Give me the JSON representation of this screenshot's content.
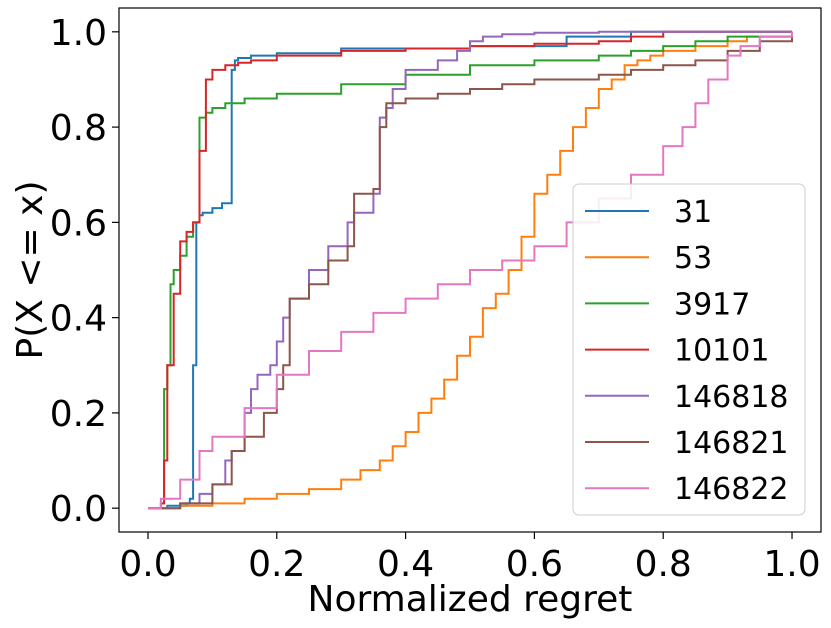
{
  "chart_data": {
    "type": "line",
    "step": true,
    "title": "",
    "xlabel": "Normalized regret",
    "ylabel": "P(X <= x)",
    "xlim": [
      -0.045,
      1.045
    ],
    "ylim": [
      -0.05,
      1.05
    ],
    "xticks": [
      0.0,
      0.2,
      0.4,
      0.6,
      0.8,
      1.0
    ],
    "xtick_labels": [
      "0.0",
      "0.2",
      "0.4",
      "0.6",
      "0.8",
      "1.0"
    ],
    "yticks": [
      0.0,
      0.2,
      0.4,
      0.6,
      0.8,
      1.0
    ],
    "ytick_labels": [
      "0.0",
      "0.2",
      "0.4",
      "0.6",
      "0.8",
      "1.0"
    ],
    "grid": false,
    "legend": "center-right",
    "series": [
      {
        "name": "31",
        "color": "#1f77b4",
        "x": [
          0.0,
          0.03,
          0.06,
          0.065,
          0.07,
          0.075,
          0.08,
          0.085,
          0.1,
          0.115,
          0.13,
          0.135,
          0.14,
          0.16,
          0.2,
          0.3,
          0.5,
          0.65,
          0.75,
          0.8,
          1.0
        ],
        "y": [
          0.0,
          0.005,
          0.01,
          0.02,
          0.3,
          0.6,
          0.615,
          0.62,
          0.63,
          0.64,
          0.92,
          0.94,
          0.945,
          0.95,
          0.955,
          0.965,
          0.97,
          0.99,
          1.0,
          1.0,
          1.0
        ]
      },
      {
        "name": "53",
        "color": "#ff7f0e",
        "x": [
          0.0,
          0.05,
          0.1,
          0.15,
          0.2,
          0.25,
          0.3,
          0.33,
          0.36,
          0.38,
          0.4,
          0.42,
          0.44,
          0.46,
          0.48,
          0.5,
          0.52,
          0.54,
          0.56,
          0.58,
          0.6,
          0.62,
          0.64,
          0.66,
          0.68,
          0.7,
          0.72,
          0.74,
          0.76,
          0.78,
          0.8,
          0.85,
          0.9,
          0.93,
          1.0
        ],
        "y": [
          0.0,
          0.005,
          0.01,
          0.02,
          0.03,
          0.04,
          0.06,
          0.08,
          0.1,
          0.13,
          0.16,
          0.2,
          0.23,
          0.27,
          0.32,
          0.36,
          0.42,
          0.45,
          0.5,
          0.57,
          0.66,
          0.7,
          0.75,
          0.8,
          0.84,
          0.88,
          0.9,
          0.93,
          0.94,
          0.95,
          0.96,
          0.97,
          0.98,
          0.99,
          1.0
        ]
      },
      {
        "name": "3917",
        "color": "#2ca02c",
        "x": [
          0.0,
          0.02,
          0.025,
          0.03,
          0.035,
          0.04,
          0.05,
          0.06,
          0.07,
          0.08,
          0.09,
          0.1,
          0.12,
          0.15,
          0.2,
          0.3,
          0.4,
          0.5,
          0.6,
          0.7,
          0.75,
          0.8,
          0.85,
          0.9,
          1.0
        ],
        "y": [
          0.0,
          0.01,
          0.25,
          0.3,
          0.47,
          0.5,
          0.53,
          0.57,
          0.6,
          0.82,
          0.83,
          0.84,
          0.85,
          0.86,
          0.87,
          0.89,
          0.91,
          0.93,
          0.94,
          0.95,
          0.96,
          0.97,
          0.98,
          0.99,
          1.0
        ]
      },
      {
        "name": "10101",
        "color": "#d62728",
        "x": [
          0.0,
          0.02,
          0.025,
          0.03,
          0.04,
          0.05,
          0.06,
          0.07,
          0.08,
          0.09,
          0.1,
          0.12,
          0.14,
          0.16,
          0.2,
          0.3,
          0.4,
          0.5,
          0.6,
          0.7,
          0.75,
          0.8,
          1.0
        ],
        "y": [
          0.0,
          0.01,
          0.1,
          0.3,
          0.45,
          0.56,
          0.58,
          0.6,
          0.75,
          0.9,
          0.92,
          0.93,
          0.935,
          0.94,
          0.95,
          0.96,
          0.965,
          0.97,
          0.975,
          0.98,
          0.99,
          1.0,
          1.0
        ]
      },
      {
        "name": "146818",
        "color": "#9467bd",
        "x": [
          0.0,
          0.05,
          0.08,
          0.1,
          0.12,
          0.13,
          0.15,
          0.16,
          0.17,
          0.19,
          0.2,
          0.21,
          0.22,
          0.25,
          0.28,
          0.31,
          0.32,
          0.35,
          0.36,
          0.37,
          0.38,
          0.4,
          0.45,
          0.48,
          0.5,
          0.52,
          0.55,
          0.6,
          0.7,
          1.0
        ],
        "y": [
          0.0,
          0.01,
          0.03,
          0.05,
          0.1,
          0.12,
          0.2,
          0.25,
          0.28,
          0.3,
          0.35,
          0.4,
          0.44,
          0.5,
          0.55,
          0.6,
          0.62,
          0.66,
          0.82,
          0.84,
          0.88,
          0.92,
          0.94,
          0.96,
          0.98,
          0.99,
          0.995,
          0.998,
          1.0,
          1.0
        ]
      },
      {
        "name": "146821",
        "color": "#8c564b",
        "x": [
          0.0,
          0.05,
          0.1,
          0.13,
          0.15,
          0.18,
          0.2,
          0.21,
          0.22,
          0.25,
          0.28,
          0.31,
          0.32,
          0.35,
          0.36,
          0.37,
          0.4,
          0.45,
          0.5,
          0.55,
          0.6,
          0.65,
          0.7,
          0.75,
          0.8,
          0.85,
          0.9,
          0.95,
          1.0
        ],
        "y": [
          0.0,
          0.01,
          0.05,
          0.12,
          0.15,
          0.2,
          0.25,
          0.3,
          0.44,
          0.47,
          0.52,
          0.55,
          0.66,
          0.67,
          0.8,
          0.85,
          0.86,
          0.87,
          0.88,
          0.89,
          0.9,
          0.9,
          0.91,
          0.92,
          0.93,
          0.94,
          0.96,
          0.98,
          1.0
        ]
      },
      {
        "name": "146822",
        "color": "#e377c2",
        "x": [
          0.0,
          0.02,
          0.05,
          0.08,
          0.1,
          0.15,
          0.2,
          0.25,
          0.3,
          0.35,
          0.4,
          0.45,
          0.5,
          0.55,
          0.6,
          0.65,
          0.7,
          0.75,
          0.8,
          0.83,
          0.85,
          0.87,
          0.9,
          0.92,
          0.95,
          1.0
        ],
        "y": [
          0.0,
          0.02,
          0.06,
          0.12,
          0.15,
          0.21,
          0.28,
          0.33,
          0.37,
          0.41,
          0.44,
          0.47,
          0.5,
          0.52,
          0.55,
          0.6,
          0.65,
          0.7,
          0.76,
          0.8,
          0.85,
          0.9,
          0.95,
          0.97,
          0.99,
          1.0
        ]
      }
    ]
  }
}
